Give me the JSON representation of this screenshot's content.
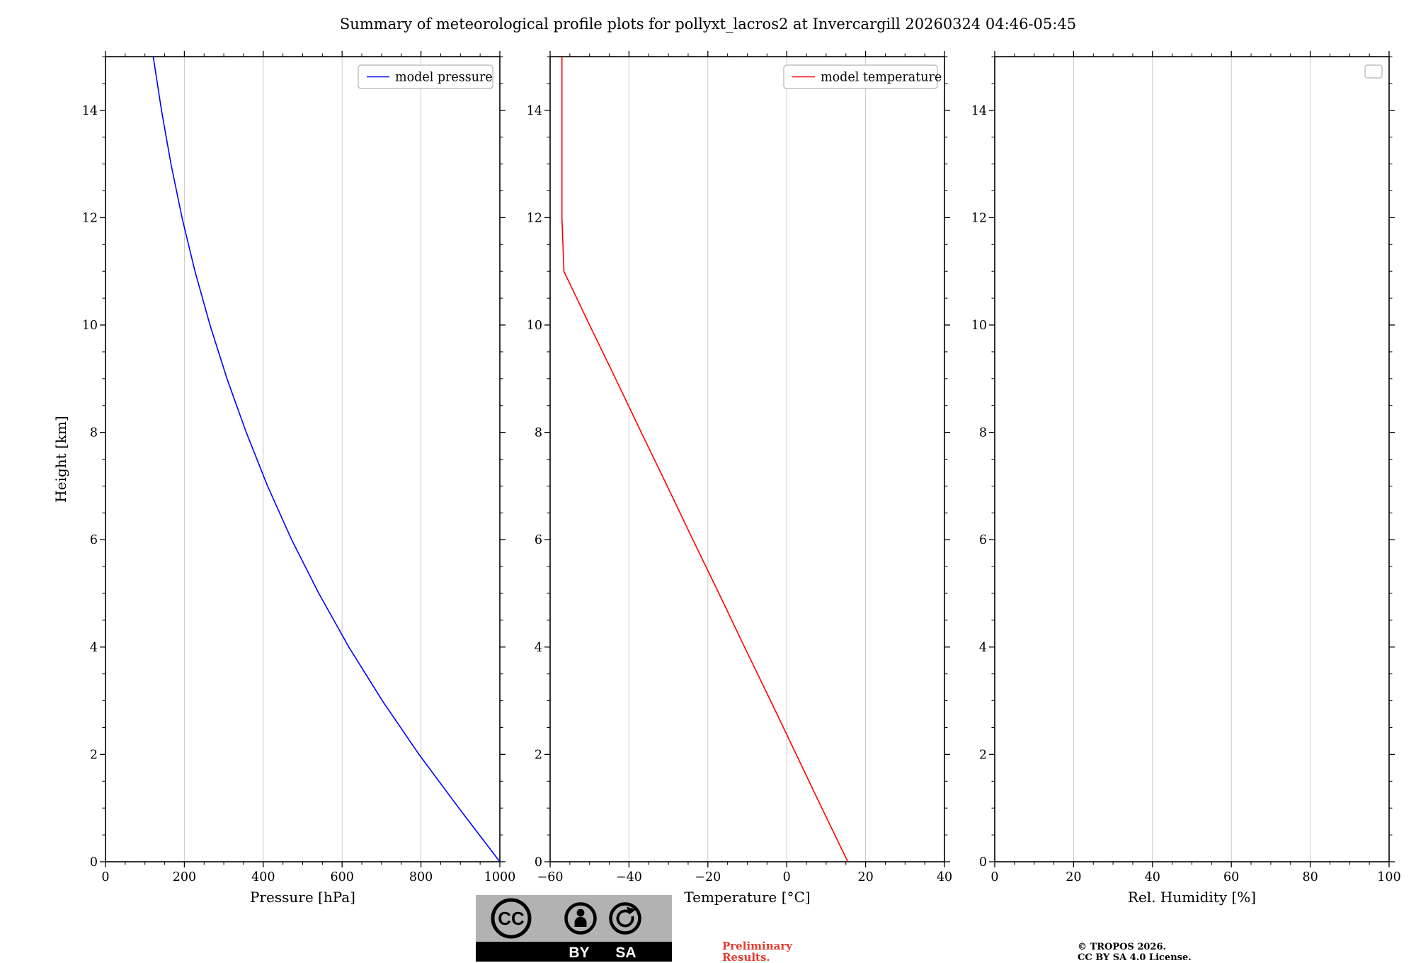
{
  "title": "Summary of meteorological profile plots for pollyxt_lacros2 at Invercargill 20260324 04:46-05:45",
  "chart_data": [
    {
      "type": "line",
      "name": "pressure-profile",
      "xlabel": "Pressure [hPa]",
      "ylabel": "Height [km]",
      "xlim": [
        0,
        1000
      ],
      "ylim": [
        0,
        15
      ],
      "xticks": [
        0,
        200,
        400,
        600,
        800,
        1000
      ],
      "xtick_labels": [
        "0",
        "200",
        "400",
        "600",
        "800",
        "1000"
      ],
      "yticks": [
        0,
        2,
        4,
        6,
        8,
        10,
        12,
        14
      ],
      "ytick_labels": [
        "0",
        "2",
        "4",
        "6",
        "8",
        "10",
        "12",
        "14"
      ],
      "xminor_step": 50,
      "yminor_step": 0.5,
      "grid": "vertical-major",
      "legend_position": "upper-right",
      "legend": [
        {
          "label": "model pressure",
          "color": "#0000ff"
        }
      ],
      "series": [
        {
          "name": "model pressure",
          "color": "#0000ff",
          "y": [
            0,
            1,
            2,
            3,
            4,
            5,
            6,
            7,
            8,
            9,
            10,
            11,
            12,
            13,
            14,
            15
          ],
          "x": [
            1000,
            896,
            795,
            702,
            617,
            541,
            472,
            411,
            357,
            308,
            265,
            227,
            194,
            166,
            142,
            121
          ]
        }
      ]
    },
    {
      "type": "line",
      "name": "temperature-profile",
      "xlabel": "Temperature [°C]",
      "ylabel": "Height [km]",
      "xlim": [
        -60,
        40
      ],
      "ylim": [
        0,
        15
      ],
      "xticks": [
        -60,
        -40,
        -20,
        0,
        20,
        40
      ],
      "xtick_labels": [
        "−60",
        "−40",
        "−20",
        "0",
        "20",
        "40"
      ],
      "yticks": [
        0,
        2,
        4,
        6,
        8,
        10,
        12,
        14
      ],
      "ytick_labels": [
        "0",
        "2",
        "4",
        "6",
        "8",
        "10",
        "12",
        "14"
      ],
      "xminor_step": 5,
      "yminor_step": 0.5,
      "grid": "vertical-major",
      "legend_position": "upper-right",
      "legend": [
        {
          "label": "model temperature",
          "color": "#ff0000"
        }
      ],
      "series": [
        {
          "name": "model temperature",
          "color": "#ff0000",
          "y": [
            0,
            1,
            2,
            3,
            4,
            5,
            6,
            7,
            8,
            9,
            10,
            11,
            12,
            13,
            14,
            15
          ],
          "x": [
            15.5,
            8.9,
            2.4,
            -4.1,
            -10.7,
            -17.2,
            -23.8,
            -30.3,
            -36.9,
            -43.4,
            -50.0,
            -56.5,
            -57.0,
            -57.0,
            -57.0,
            -57.0
          ]
        }
      ]
    },
    {
      "type": "line",
      "name": "humidity-profile",
      "xlabel": "Rel. Humidity [%]",
      "ylabel": "Height [km]",
      "xlim": [
        0,
        100
      ],
      "ylim": [
        0,
        15
      ],
      "xticks": [
        0,
        20,
        40,
        60,
        80,
        100
      ],
      "xtick_labels": [
        "0",
        "20",
        "40",
        "60",
        "80",
        "100"
      ],
      "yticks": [
        0,
        2,
        4,
        6,
        8,
        10,
        12,
        14
      ],
      "ytick_labels": [
        "0",
        "2",
        "4",
        "6",
        "8",
        "10",
        "12",
        "14"
      ],
      "xminor_step": 5,
      "yminor_step": 0.5,
      "grid": "vertical-major",
      "legend_position": "upper-right",
      "legend": [],
      "series": []
    }
  ],
  "footer": {
    "badge": {
      "cc": "CC",
      "by": "BY",
      "sa": "SA"
    },
    "preliminary": [
      "Preliminary",
      "Results."
    ],
    "copyright": [
      "© TROPOS 2026.",
      "CC BY SA 4.0 License."
    ]
  },
  "colors": {
    "pressure_line": "#0000ff",
    "temperature_line": "#ff0000",
    "grid": "#c9c9c9",
    "axis": "#000000",
    "legend_border": "#b3b3b3",
    "preliminary_text": "#e8392e",
    "badge_bg": "#b2b2b2",
    "badge_bar": "#000000"
  }
}
